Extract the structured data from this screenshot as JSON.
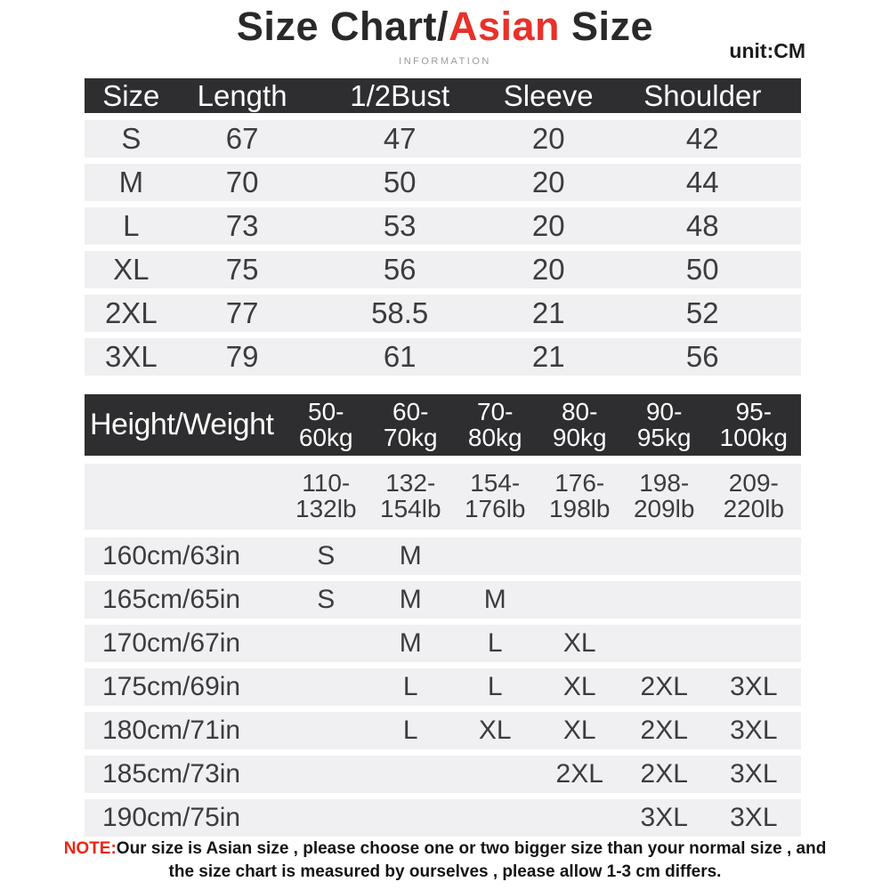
{
  "title": {
    "part1": "Size Chart/",
    "accent": "Asian",
    "part2": " Size"
  },
  "subtitle": "INFORMATION",
  "unit_label": "unit:CM",
  "colors": {
    "accent_red": "#e8312a",
    "note_red": "#ee2415",
    "header_dark": "#2e2e30",
    "row_stripe": "#f0eff1"
  },
  "size_table": {
    "headers": [
      "Size",
      "Length",
      "1/2Bust",
      "Sleeve",
      "Shoulder"
    ],
    "rows": [
      [
        "S",
        "67",
        "47",
        "20",
        "42"
      ],
      [
        "M",
        "70",
        "50",
        "20",
        "44"
      ],
      [
        "L",
        "73",
        "53",
        "20",
        "48"
      ],
      [
        "XL",
        "75",
        "56",
        "20",
        "50"
      ],
      [
        "2XL",
        "77",
        "58.5",
        "21",
        "52"
      ],
      [
        "3XL",
        "79",
        "61",
        "21",
        "56"
      ]
    ]
  },
  "fit_table": {
    "corner_label": "Height/Weight",
    "weights_kg": [
      "50-\n60kg",
      "60-\n70kg",
      "70-\n80kg",
      "80-\n90kg",
      "90-\n95kg",
      "95-\n100kg"
    ],
    "weights_lb": [
      "110-\n132lb",
      "132-\n154lb",
      "154-\n176lb",
      "176-\n198lb",
      "198-\n209lb",
      "209-\n220lb"
    ],
    "rows": [
      {
        "height": "160cm/63in",
        "sizes": [
          "S",
          "M",
          "",
          "",
          "",
          ""
        ]
      },
      {
        "height": "165cm/65in",
        "sizes": [
          "S",
          "M",
          "M",
          "",
          "",
          ""
        ]
      },
      {
        "height": "170cm/67in",
        "sizes": [
          "",
          "M",
          "L",
          "XL",
          "",
          ""
        ]
      },
      {
        "height": "175cm/69in",
        "sizes": [
          "",
          "L",
          "L",
          "XL",
          "2XL",
          "3XL"
        ]
      },
      {
        "height": "180cm/71in",
        "sizes": [
          "",
          "L",
          "XL",
          "XL",
          "2XL",
          "3XL"
        ]
      },
      {
        "height": "185cm/73in",
        "sizes": [
          "",
          "",
          "",
          "2XL",
          "2XL",
          "3XL"
        ]
      },
      {
        "height": "190cm/75in",
        "sizes": [
          "",
          "",
          "",
          "",
          "3XL",
          "3XL"
        ]
      }
    ]
  },
  "note": {
    "label": "NOTE:",
    "text": "Our size is Asian size , please choose one or two bigger size than your normal size , and the size chart is measured by ourselves , please allow 1-3 cm differs."
  }
}
